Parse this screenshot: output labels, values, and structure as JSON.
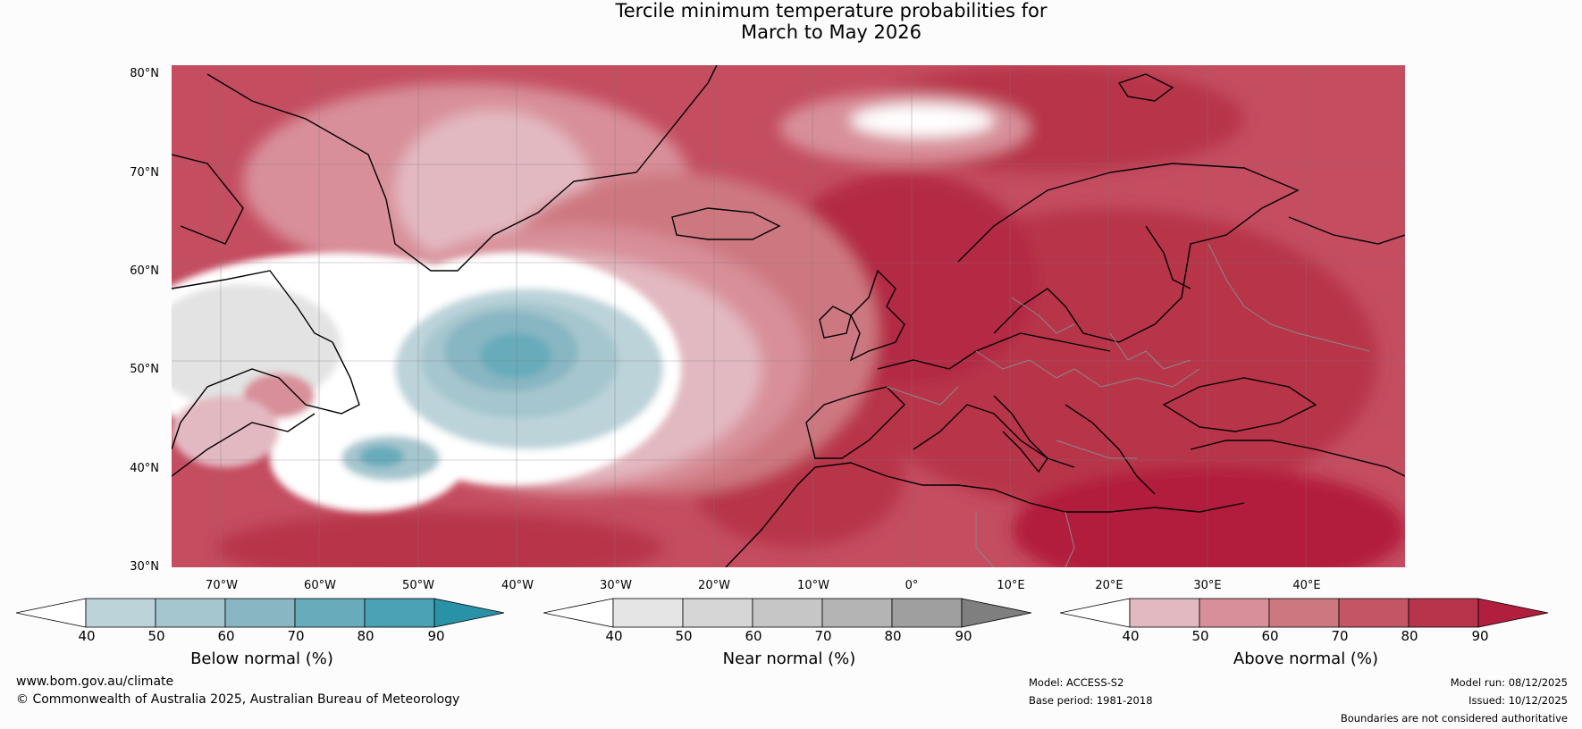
{
  "title": {
    "line1": "Tercile minimum temperature probabilities for",
    "line2": "March to May 2026"
  },
  "map": {
    "latitude_labels": [
      "80°N",
      "70°N",
      "60°N",
      "50°N",
      "40°N",
      "30°N"
    ],
    "longitude_labels": [
      "70°W",
      "60°W",
      "50°W",
      "40°W",
      "30°W",
      "20°W",
      "10°W",
      "0°",
      "10°E",
      "20°E",
      "30°E",
      "40°E"
    ]
  },
  "colorbars": [
    {
      "label": "Below normal (%)",
      "ticks": [
        "40",
        "50",
        "60",
        "70",
        "80",
        "90"
      ],
      "colors": [
        "#ffffff",
        "#bcd3da",
        "#a5c6ce",
        "#88b6c3",
        "#68acbb",
        "#4aa2b4",
        "#2a92a7"
      ]
    },
    {
      "label": "Near normal (%)",
      "ticks": [
        "40",
        "50",
        "60",
        "70",
        "80",
        "90"
      ],
      "colors": [
        "#ffffff",
        "#e5e5e5",
        "#d6d6d6",
        "#c6c6c6",
        "#b4b4b4",
        "#9f9f9f",
        "#7f7f7f"
      ]
    },
    {
      "label": "Above normal (%)",
      "ticks": [
        "40",
        "50",
        "60",
        "70",
        "80",
        "90"
      ],
      "colors": [
        "#ffffff",
        "#e3b9c1",
        "#d88f9a",
        "#cd7880",
        "#c45564",
        "#b8344a",
        "#b21f3e"
      ]
    }
  ],
  "footer": {
    "website": "www.bom.gov.au/climate",
    "copyright": "© Commonwealth of Australia 2025, Australian Bureau of Meteorology",
    "model": "Model: ACCESS-S2",
    "base_period": "Base period: 1981-2018",
    "model_run": "Model run: 08/12/2025",
    "issued": "Issued: 10/12/2025",
    "disclaimer": "Boundaries are not considered authoritative"
  }
}
